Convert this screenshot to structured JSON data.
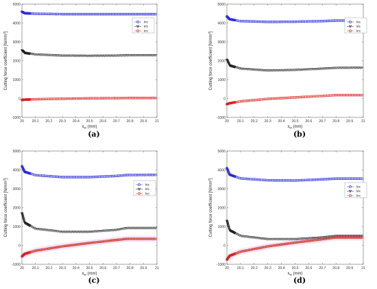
{
  "chart_data": [
    {
      "type": "scatter",
      "panel_label": "(a)",
      "xlabel": "x_w (mm)",
      "xlabel_main": "x",
      "xlabel_sub": "w",
      "xlabel_unit": " (mm)",
      "ylabel": "Cutting force coefficient [N/mm²]",
      "ylabel_main": "Cutting force coefficient [N/mm",
      "ylabel_sup": "2",
      "ylabel_end": "]",
      "xlim": [
        20,
        21
      ],
      "ylim": [
        -1000,
        5000
      ],
      "xticks": [
        "20",
        "20.1",
        "20.2",
        "20.3",
        "20.4",
        "20.5",
        "20.6",
        "20.7",
        "20.8",
        "20.9",
        "21"
      ],
      "yticks": [
        "-1000",
        "0",
        "1000",
        "2000",
        "3000",
        "4000",
        "5000"
      ],
      "legend_position": "top-right",
      "series": [
        {
          "name": "ktc",
          "color": "#2b2bdc",
          "marker": "circle",
          "points": [
            [
              20.0,
              4600
            ],
            [
              20.02,
              4520
            ],
            [
              20.1,
              4490
            ],
            [
              20.3,
              4470
            ],
            [
              20.5,
              4470
            ],
            [
              20.7,
              4470
            ],
            [
              20.85,
              4470
            ],
            [
              21.0,
              4470
            ]
          ]
        },
        {
          "name": "kfc",
          "color": "#222222",
          "marker": "triangle-down",
          "points": [
            [
              20.0,
              2550
            ],
            [
              20.02,
              2420
            ],
            [
              20.1,
              2330
            ],
            [
              20.3,
              2270
            ],
            [
              20.5,
              2260
            ],
            [
              20.7,
              2270
            ],
            [
              20.8,
              2290
            ],
            [
              21.0,
              2290
            ]
          ]
        },
        {
          "name": "krc",
          "color": "#e02020",
          "marker": "circle",
          "points": [
            [
              20.0,
              -80
            ],
            [
              20.02,
              -60
            ],
            [
              20.1,
              -40
            ],
            [
              20.3,
              -10
            ],
            [
              20.5,
              10
            ],
            [
              20.7,
              20
            ],
            [
              20.8,
              30
            ],
            [
              21.0,
              30
            ]
          ]
        }
      ]
    },
    {
      "type": "scatter",
      "panel_label": "(b)",
      "xlabel": "x_w (mm)",
      "xlabel_main": "x",
      "xlabel_sub": "w",
      "xlabel_unit": " (mm)",
      "ylabel": "Cutting force coefficient [N/mm²]",
      "ylabel_main": "Cutting force coefficient [N/mm",
      "ylabel_sup": "2",
      "ylabel_end": "]",
      "xlim": [
        20,
        21
      ],
      "ylim": [
        -1000,
        5000
      ],
      "xticks": [
        "20",
        "20.1",
        "20.2",
        "20.3",
        "20.4",
        "20.5",
        "20.6",
        "20.7",
        "20.8",
        "20.9",
        "21"
      ],
      "yticks": [
        "-1000",
        "0",
        "1000",
        "2000",
        "3000",
        "4000",
        "5000"
      ],
      "legend_position": "top-right",
      "series": [
        {
          "name": "ktc",
          "color": "#2b2bdc",
          "marker": "circle",
          "points": [
            [
              20.0,
              4350
            ],
            [
              20.02,
              4200
            ],
            [
              20.1,
              4100
            ],
            [
              20.3,
              4060
            ],
            [
              20.5,
              4070
            ],
            [
              20.7,
              4100
            ],
            [
              20.8,
              4130
            ],
            [
              21.0,
              4130
            ]
          ]
        },
        {
          "name": "kfc",
          "color": "#222222",
          "marker": "triangle-down",
          "points": [
            [
              20.0,
              2050
            ],
            [
              20.02,
              1750
            ],
            [
              20.1,
              1580
            ],
            [
              20.3,
              1480
            ],
            [
              20.5,
              1510
            ],
            [
              20.7,
              1580
            ],
            [
              20.8,
              1620
            ],
            [
              21.0,
              1630
            ]
          ]
        },
        {
          "name": "krc",
          "color": "#e02020",
          "marker": "circle",
          "points": [
            [
              20.0,
              -300
            ],
            [
              20.02,
              -250
            ],
            [
              20.1,
              -150
            ],
            [
              20.3,
              -20
            ],
            [
              20.5,
              60
            ],
            [
              20.7,
              140
            ],
            [
              20.8,
              180
            ],
            [
              21.0,
              180
            ]
          ]
        }
      ]
    },
    {
      "type": "scatter",
      "panel_label": "(c)",
      "xlabel": "x_w (mm)",
      "xlabel_main": "x",
      "xlabel_sub": "w",
      "xlabel_unit": " (mm)",
      "ylabel": "Cutting force coefficient [N/mm²]",
      "ylabel_main": "Cutting force coefficient [N/mm",
      "ylabel_sup": "2",
      "ylabel_end": "]",
      "xlim": [
        20,
        21
      ],
      "ylim": [
        -1000,
        5000
      ],
      "xticks": [
        "20",
        "20.1",
        "20.2",
        "20.3",
        "20.4",
        "20.5",
        "20.6",
        "20.7",
        "20.8",
        "20.9",
        "21"
      ],
      "yticks": [
        "-1000",
        "0",
        "1000",
        "2000",
        "3000",
        "4000",
        "5000"
      ],
      "legend_position": "middle-right",
      "series": [
        {
          "name": "ktc",
          "color": "#2b2bdc",
          "marker": "circle",
          "points": [
            [
              20.0,
              4200
            ],
            [
              20.02,
              3900
            ],
            [
              20.1,
              3720
            ],
            [
              20.3,
              3620
            ],
            [
              20.5,
              3620
            ],
            [
              20.7,
              3680
            ],
            [
              20.78,
              3730
            ],
            [
              21.0,
              3740
            ]
          ]
        },
        {
          "name": "kfc",
          "color": "#222222",
          "marker": "triangle-down",
          "points": [
            [
              20.0,
              1700
            ],
            [
              20.02,
              1200
            ],
            [
              20.1,
              880
            ],
            [
              20.3,
              720
            ],
            [
              20.5,
              720
            ],
            [
              20.7,
              820
            ],
            [
              20.78,
              920
            ],
            [
              21.0,
              920
            ]
          ]
        },
        {
          "name": "krc",
          "color": "#e02020",
          "marker": "circle",
          "points": [
            [
              20.0,
              -580
            ],
            [
              20.02,
              -450
            ],
            [
              20.1,
              -280
            ],
            [
              20.3,
              -50
            ],
            [
              20.5,
              130
            ],
            [
              20.7,
              290
            ],
            [
              20.78,
              350
            ],
            [
              21.0,
              350
            ]
          ]
        }
      ]
    },
    {
      "type": "scatter",
      "panel_label": "(d)",
      "xlabel": "x_w (mm)",
      "xlabel_main": "x",
      "xlabel_sub": "w",
      "xlabel_unit": " (mm)",
      "ylabel": "Cutting force coefficient [N/mm²]",
      "ylabel_main": "Cutting force coefficient [N/mm",
      "ylabel_sup": "2",
      "ylabel_end": "]",
      "xlim": [
        20,
        21
      ],
      "ylim": [
        -1000,
        5000
      ],
      "xticks": [
        "20",
        "20.1",
        "20.2",
        "20.3",
        "20.4",
        "20.5",
        "20.6",
        "20.7",
        "20.8",
        "20.9",
        "21"
      ],
      "yticks": [
        "-1000",
        "0",
        "1000",
        "2000",
        "3000",
        "4000",
        "5000"
      ],
      "legend_position": "middle-right",
      "series": [
        {
          "name": "ktc",
          "color": "#2b2bdc",
          "marker": "circle",
          "points": [
            [
              20.0,
              4100
            ],
            [
              20.02,
              3750
            ],
            [
              20.1,
              3550
            ],
            [
              20.3,
              3450
            ],
            [
              20.5,
              3440
            ],
            [
              20.7,
              3500
            ],
            [
              20.8,
              3540
            ],
            [
              21.0,
              3540
            ]
          ]
        },
        {
          "name": "kfc",
          "color": "#222222",
          "marker": "triangle-down",
          "points": [
            [
              20.0,
              1300
            ],
            [
              20.02,
              800
            ],
            [
              20.1,
              500
            ],
            [
              20.3,
              330
            ],
            [
              20.5,
              330
            ],
            [
              20.7,
              420
            ],
            [
              20.8,
              500
            ],
            [
              21.0,
              500
            ]
          ]
        },
        {
          "name": "krc",
          "color": "#e02020",
          "marker": "circle",
          "points": [
            [
              20.0,
              -750
            ],
            [
              20.02,
              -550
            ],
            [
              20.1,
              -330
            ],
            [
              20.3,
              -50
            ],
            [
              20.5,
              150
            ],
            [
              20.7,
              330
            ],
            [
              20.8,
              420
            ],
            [
              21.0,
              420
            ]
          ]
        }
      ]
    }
  ]
}
